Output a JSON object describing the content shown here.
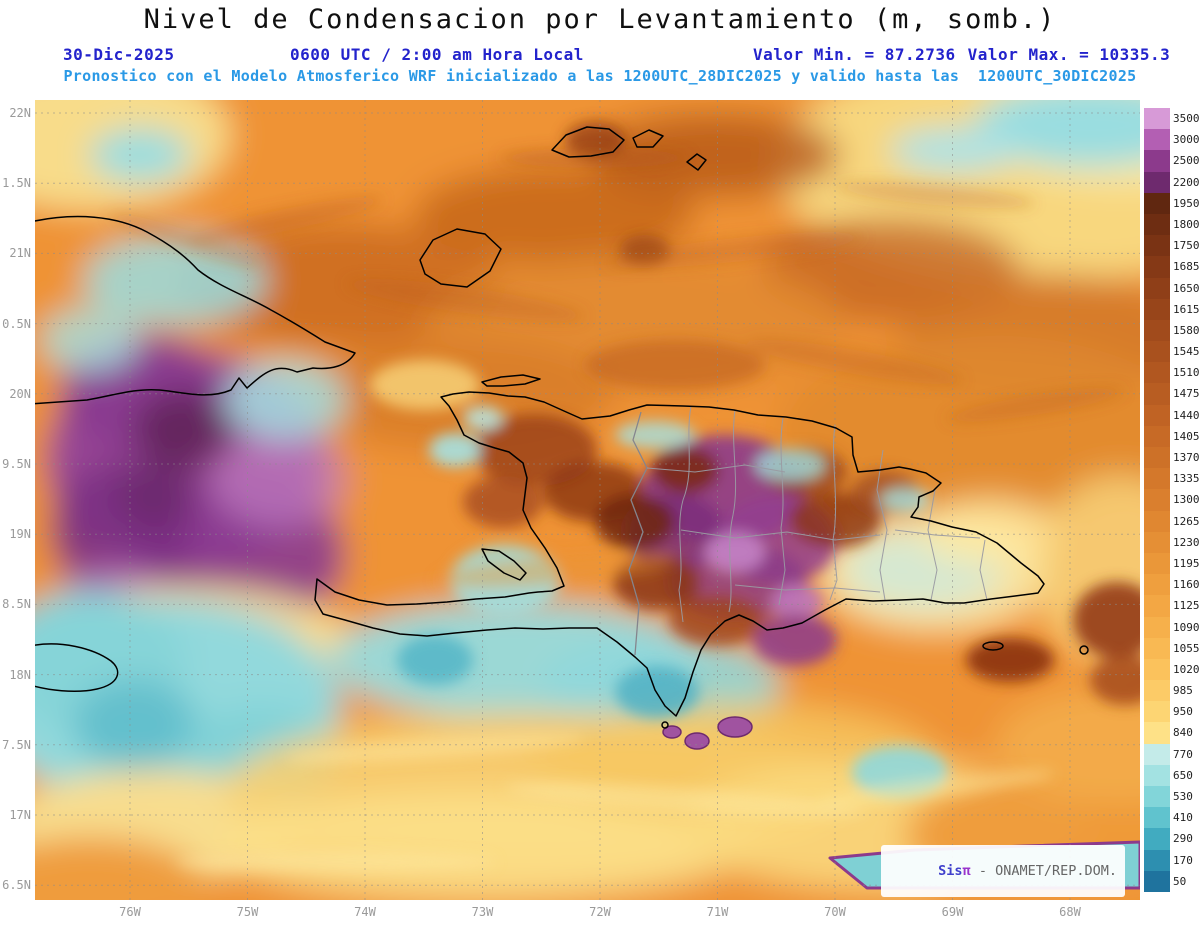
{
  "header": {
    "title": "Nivel de Condensacion por Levantamiento (m, somb.)",
    "date": "30-Dic-2025",
    "time": "0600 UTC / 2:00 am Hora Local",
    "min_label": "Valor Min. = 87.2736",
    "max_label": "Valor Max. = 10335.3",
    "model_line": "Pronostico con el Modelo Atmosferico WRF inicializado a las 1200UTC_28DIC2025 y valido hasta las  1200UTC_30DIC2025"
  },
  "axes": {
    "lat_labels": [
      "22N",
      "1.5N",
      "21N",
      "0.5N",
      "20N",
      "9.5N",
      "19N",
      "8.5N",
      "18N",
      "7.5N",
      "17N",
      "6.5N"
    ],
    "lon_labels": [
      "76W",
      "75W",
      "74W",
      "73W",
      "72W",
      "71W",
      "70W",
      "69W",
      "68W"
    ]
  },
  "colorbar": {
    "levels": [
      "3500",
      "3000",
      "2500",
      "2200",
      "1950",
      "1800",
      "1750",
      "1685",
      "1650",
      "1615",
      "1580",
      "1545",
      "1510",
      "1475",
      "1440",
      "1405",
      "1370",
      "1335",
      "1300",
      "1265",
      "1230",
      "1195",
      "1160",
      "1125",
      "1090",
      "1055",
      "1020",
      "985",
      "950",
      "840",
      "770",
      "650",
      "530",
      "410",
      "290",
      "170",
      "50"
    ],
    "colors": [
      "#d79ad7",
      "#b35fb3",
      "#8c3a8c",
      "#6e2a6e",
      "#602710",
      "#6e2d12",
      "#7a3314",
      "#853916",
      "#8f3f18",
      "#98451a",
      "#a14b1c",
      "#a9511e",
      "#b15720",
      "#b85d22",
      "#c06324",
      "#c76a26",
      "#cd7128",
      "#d4782b",
      "#da7f2e",
      "#e08731",
      "#e58f35",
      "#ea9739",
      "#ef9f3e",
      "#f3a744",
      "#f6b04b",
      "#f9b953",
      "#fbc25c",
      "#fccb67",
      "#fdd573",
      "#fee187",
      "#c4ebe9",
      "#a3e2e2",
      "#82d5d9",
      "#60c3ce",
      "#41abc0",
      "#2d8fb0",
      "#1f739e"
    ]
  },
  "watermark": {
    "brand_sis": "Sis",
    "brand_pi": "π",
    "text": " - ONAMET/REP.DOM."
  },
  "colors": {
    "header_blue": "#2323cc",
    "header_light_blue": "#2a99e6",
    "title_color": "#101010",
    "axis_label_gray": "#9a9a9a",
    "base_field_orange": "#ef9335",
    "land_outline": "#000000",
    "province_line": "#9a9aa2"
  },
  "chart_data": {
    "type": "heatmap",
    "title": "Nivel de Condensacion por Levantamiento (m, somb.)",
    "units": "m",
    "value_min": 87.2736,
    "value_max": 10335.3,
    "valid_date": "30-Dic-2025",
    "valid_time": "0600 UTC / 2:00 am Hora Local",
    "model_info": "Pronostico con el Modelo Atmosferico WRF inicializado a las 1200UTC_28DIC2025 y valido hasta las 1200UTC_30DIC2025",
    "contour_levels": [
      3500,
      3000,
      2500,
      2200,
      1950,
      1800,
      1750,
      1685,
      1650,
      1615,
      1580,
      1545,
      1510,
      1475,
      1440,
      1405,
      1370,
      1335,
      1300,
      1265,
      1230,
      1195,
      1160,
      1125,
      1090,
      1055,
      1020,
      985,
      950,
      840,
      770,
      650,
      530,
      410,
      290,
      170,
      50
    ],
    "x_tick_labels": [
      "76W",
      "75W",
      "74W",
      "73W",
      "72W",
      "71W",
      "70W",
      "69W",
      "68W"
    ],
    "y_tick_labels": [
      "22N",
      "1.5N",
      "21N",
      "0.5N",
      "20N",
      "9.5N",
      "19N",
      "8.5N",
      "18N",
      "7.5N",
      "17N",
      "6.5N"
    ],
    "legend_position": "right",
    "grid": true
  }
}
